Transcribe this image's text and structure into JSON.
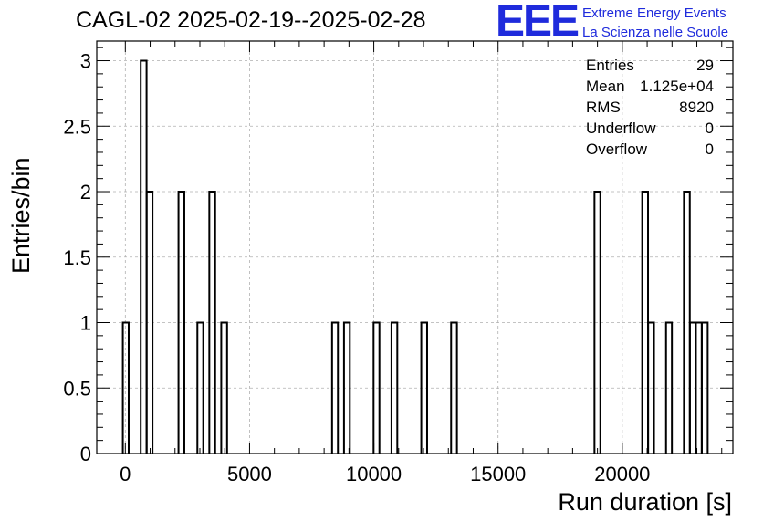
{
  "title": "CAGL-02 2025-02-19--2025-02-28",
  "logo": {
    "mark": "EEE",
    "line1": "Extreme Energy Events",
    "line2": "La Scienza nelle Scuole",
    "color": "#1f2bdc"
  },
  "stats": [
    {
      "label": "Entries",
      "value": "29"
    },
    {
      "label": "Mean",
      "value": "1.125e+04"
    },
    {
      "label": "RMS",
      "value": "8920"
    },
    {
      "label": "Underflow",
      "value": "0"
    },
    {
      "label": "Overflow",
      "value": "0"
    }
  ],
  "chart_data": {
    "type": "bar",
    "xlabel": "Run duration [s]",
    "ylabel": "Entries/bin",
    "xlim": [
      -1150,
      24450
    ],
    "ylim": [
      0,
      3.15
    ],
    "grid": true,
    "bin_width": 235,
    "x_ticks": [
      0,
      5000,
      10000,
      15000,
      20000
    ],
    "y_ticks": [
      0,
      0.5,
      1,
      1.5,
      2,
      2.5,
      3
    ],
    "bins": [
      {
        "x": -100,
        "y": 1
      },
      {
        "x": 620,
        "y": 3
      },
      {
        "x": 860,
        "y": 2
      },
      {
        "x": 2140,
        "y": 2
      },
      {
        "x": 2900,
        "y": 1
      },
      {
        "x": 3380,
        "y": 2
      },
      {
        "x": 3860,
        "y": 1
      },
      {
        "x": 8320,
        "y": 1
      },
      {
        "x": 8800,
        "y": 1
      },
      {
        "x": 9990,
        "y": 1
      },
      {
        "x": 10710,
        "y": 1
      },
      {
        "x": 11910,
        "y": 1
      },
      {
        "x": 13110,
        "y": 1
      },
      {
        "x": 18880,
        "y": 2
      },
      {
        "x": 20800,
        "y": 2
      },
      {
        "x": 21040,
        "y": 1
      },
      {
        "x": 21760,
        "y": 1
      },
      {
        "x": 22480,
        "y": 2
      },
      {
        "x": 22720,
        "y": 1
      },
      {
        "x": 22960,
        "y": 1
      },
      {
        "x": 23200,
        "y": 1
      }
    ]
  }
}
